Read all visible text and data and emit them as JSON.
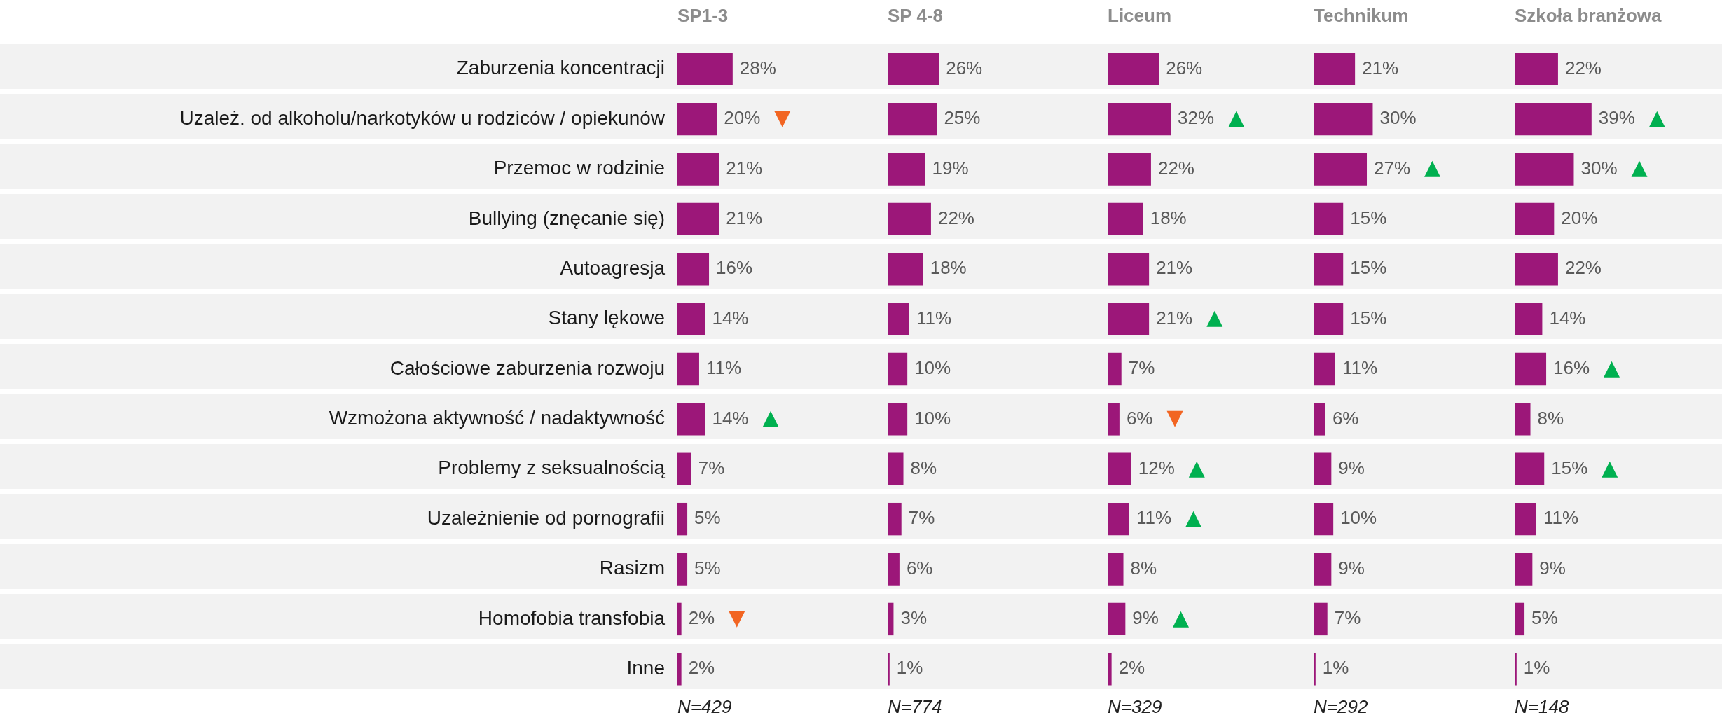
{
  "chart_data": [
    {
      "type": "bar",
      "orientation": "horizontal",
      "title": "SP1-3",
      "xlabel": "N=429",
      "categories": [
        "Zaburzenia koncentracji",
        "Uzależ. od alkoholu/narkotyków u rodziców / opiekunów",
        "Przemoc w rodzinie",
        "Bullying (znęcanie się)",
        "Autoagresja",
        "Stany lękowe",
        "Całościowe zaburzenia rozwoju",
        "Wzmożona aktywność / nadaktywność",
        "Problemy z seksualnością",
        "Uzależnienie od pornografii",
        "Rasizm",
        "Homofobia transfobia",
        "Inne"
      ],
      "values": [
        28,
        20,
        21,
        21,
        16,
        14,
        11,
        14,
        7,
        5,
        5,
        2,
        2
      ],
      "value_labels": [
        "28%",
        "20%",
        "21%",
        "21%",
        "16%",
        "14%",
        "11%",
        "14%",
        "7%",
        "5%",
        "5%",
        "2%",
        "2%"
      ],
      "color": "#9c1779",
      "tick_labels": "y",
      "grid": false,
      "legend": false,
      "annotations": [
        {
          "text": "▼",
          "x": 20,
          "y": "Uzależ. od alkoholu/narkotyków u rodziców / opiekunów"
        },
        {
          "text": "▲",
          "x": 14,
          "y": "Wzmożona aktywność / nadaktywność"
        },
        {
          "text": "▼",
          "x": 2,
          "y": "Homofobia transfobia"
        }
      ]
    },
    {
      "type": "bar",
      "orientation": "horizontal",
      "title": "SP 4-8",
      "xlabel": "N=774",
      "categories": [
        "Zaburzenia koncentracji",
        "Uzależ. od alkoholu/narkotyków u rodziców / opiekunów",
        "Przemoc w rodzinie",
        "Bullying (znęcanie się)",
        "Autoagresja",
        "Stany lękowe",
        "Całościowe zaburzenia rozwoju",
        "Wzmożona aktywność / nadaktywność",
        "Problemy z seksualnością",
        "Uzależnienie od pornografii",
        "Rasizm",
        "Homofobia transfobia",
        "Inne"
      ],
      "values": [
        26,
        25,
        19,
        22,
        18,
        11,
        10,
        10,
        8,
        7,
        6,
        3,
        1
      ],
      "value_labels": [
        "26%",
        "25%",
        "19%",
        "22%",
        "18%",
        "11%",
        "10%",
        "10%",
        "8%",
        "7%",
        "6%",
        "3%",
        "1%"
      ],
      "color": "#9c1779",
      "tick_labels": false,
      "grid": false,
      "legend": false
    },
    {
      "type": "bar",
      "orientation": "horizontal",
      "title": "Liceum",
      "xlabel": "N=329",
      "categories": [
        "Zaburzenia koncentracji",
        "Uzależ. od alkoholu/narkotyków u rodziców / opiekunów",
        "Przemoc w rodzinie",
        "Bullying (znęcanie się)",
        "Autoagresja",
        "Stany lękowe",
        "Całościowe zaburzenia rozwoju",
        "Wzmożona aktywność / nadaktywność",
        "Problemy z seksualnością",
        "Uzależnienie od pornografii",
        "Rasizm",
        "Homofobia transfobia",
        "Inne"
      ],
      "values": [
        26,
        32,
        22,
        18,
        21,
        21,
        7,
        6,
        12,
        11,
        8,
        9,
        2
      ],
      "value_labels": [
        "26%",
        "32%",
        "22%",
        "18%",
        "21%",
        "21%",
        "7%",
        "6%",
        "12%",
        "11%",
        "8%",
        "9%",
        "2%"
      ],
      "color": "#9c1779",
      "tick_labels": false,
      "grid": false,
      "legend": false,
      "annotations": [
        {
          "text": "▲",
          "x": 32,
          "y": "Uzależ. od alkoholu/narkotyków u rodziców / opiekunów"
        },
        {
          "text": "▲",
          "x": 21,
          "y": "Stany lękowe"
        },
        {
          "text": "▼",
          "x": 6,
          "y": "Wzmożona aktywność / nadaktywność"
        },
        {
          "text": "▲",
          "x": 12,
          "y": "Problemy z seksualnością"
        },
        {
          "text": "▲",
          "x": 11,
          "y": "Uzależnienie od pornografii"
        },
        {
          "text": "▲",
          "x": 9,
          "y": "Homofobia transfobia"
        }
      ]
    },
    {
      "type": "bar",
      "orientation": "horizontal",
      "title": "Technikum",
      "xlabel": "N=292",
      "categories": [
        "Zaburzenia koncentracji",
        "Uzależ. od alkoholu/narkotyków u rodziców / opiekunów",
        "Przemoc w rodzinie",
        "Bullying (znęcanie się)",
        "Autoagresja",
        "Stany lękowe",
        "Całościowe zaburzenia rozwoju",
        "Wzmożona aktywność / nadaktywność",
        "Problemy z seksualnością",
        "Uzależnienie od pornografii",
        "Rasizm",
        "Homofobia transfobia",
        "Inne"
      ],
      "values": [
        21,
        30,
        27,
        15,
        15,
        15,
        11,
        6,
        9,
        10,
        9,
        7,
        1
      ],
      "value_labels": [
        "21%",
        "30%",
        "27%",
        "15%",
        "15%",
        "15%",
        "11%",
        "6%",
        "9%",
        "10%",
        "9%",
        "7%",
        "1%"
      ],
      "color": "#9c1779",
      "tick_labels": false,
      "grid": false,
      "legend": false,
      "annotations": [
        {
          "text": "▲",
          "x": 27,
          "y": "Przemoc w rodzinie"
        }
      ]
    },
    {
      "type": "bar",
      "orientation": "horizontal",
      "title": "Szkoła branżowa",
      "xlabel": "N=148",
      "categories": [
        "Zaburzenia koncentracji",
        "Uzależ. od alkoholu/narkotyków u rodziców / opiekunów",
        "Przemoc w rodzinie",
        "Bullying (znęcanie się)",
        "Autoagresja",
        "Stany lękowe",
        "Całościowe zaburzenia rozwoju",
        "Wzmożona aktywność / nadaktywność",
        "Problemy z seksualnością",
        "Uzależnienie od pornografii",
        "Rasizm",
        "Homofobia transfobia",
        "Inne"
      ],
      "values": [
        22,
        39,
        30,
        20,
        22,
        14,
        16,
        8,
        15,
        11,
        9,
        5,
        1
      ],
      "value_labels": [
        "22%",
        "39%",
        "30%",
        "20%",
        "22%",
        "14%",
        "16%",
        "8%",
        "15%",
        "11%",
        "9%",
        "5%",
        "1%"
      ],
      "color": "#9c1779",
      "tick_labels": false,
      "grid": false,
      "legend": false,
      "annotations": [
        {
          "text": "▲",
          "x": 39,
          "y": "Uzależ. od alkoholu/narkotyków u rodziców / opiekunów"
        },
        {
          "text": "▲",
          "x": 30,
          "y": "Przemoc w rodzinie"
        },
        {
          "text": "▲",
          "x": 16,
          "y": "Całościowe zaburzenia rozwoju"
        },
        {
          "text": "▲",
          "x": 15,
          "y": "Problemy z seksualnością"
        }
      ]
    }
  ]
}
